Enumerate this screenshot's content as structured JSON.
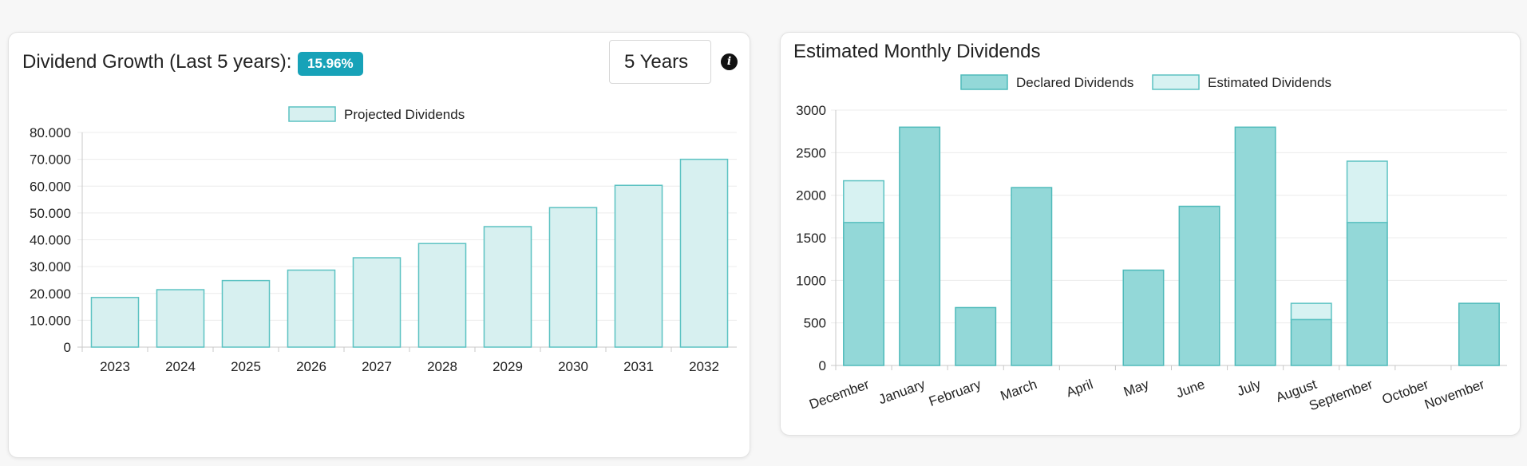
{
  "left_panel": {
    "title": "Dividend Growth (Last 5 years):",
    "growth_badge": "15.96%",
    "period_select": {
      "value": "5 Years"
    },
    "info_icon": "info-circle-icon",
    "chart_data": {
      "type": "bar",
      "categories": [
        "2023",
        "2024",
        "2025",
        "2026",
        "2027",
        "2028",
        "2029",
        "2030",
        "2031",
        "2032"
      ],
      "series": [
        {
          "name": "Projected Dividends",
          "values": [
            18500,
            21400,
            24800,
            28700,
            33300,
            38600,
            44900,
            52000,
            60300,
            70000
          ]
        }
      ],
      "y_ticks": [
        "0",
        "10.000",
        "20.000",
        "30.000",
        "40.000",
        "50.000",
        "60.000",
        "70.000",
        "80.000"
      ],
      "ylim": [
        0,
        80000
      ],
      "grid": true,
      "legend": "top-center",
      "colors": {
        "fill": "#d7f0f0",
        "stroke": "#5cc2c2"
      }
    }
  },
  "right_panel": {
    "title": "Estimated Monthly Dividends",
    "chart_data": {
      "type": "bar",
      "stacked": true,
      "categories": [
        "December",
        "January",
        "February",
        "March",
        "April",
        "May",
        "June",
        "July",
        "August",
        "September",
        "October",
        "November"
      ],
      "series": [
        {
          "name": "Declared Dividends",
          "values": [
            1680,
            2800,
            680,
            2090,
            0,
            1120,
            1870,
            2800,
            540,
            1680,
            0,
            730
          ]
        },
        {
          "name": "Estimated Dividends",
          "values": [
            490,
            0,
            0,
            0,
            0,
            0,
            0,
            0,
            190,
            720,
            0,
            0
          ]
        }
      ],
      "y_ticks": [
        "0",
        "500",
        "1000",
        "1500",
        "2000",
        "2500",
        "3000"
      ],
      "ylim": [
        0,
        3000
      ],
      "grid": true,
      "legend": "top-center",
      "colors": {
        "declared_fill": "#93d8d8",
        "declared_stroke": "#4fbaba",
        "estimated_fill": "#d7f2f2",
        "estimated_stroke": "#5cc2c2"
      }
    }
  }
}
